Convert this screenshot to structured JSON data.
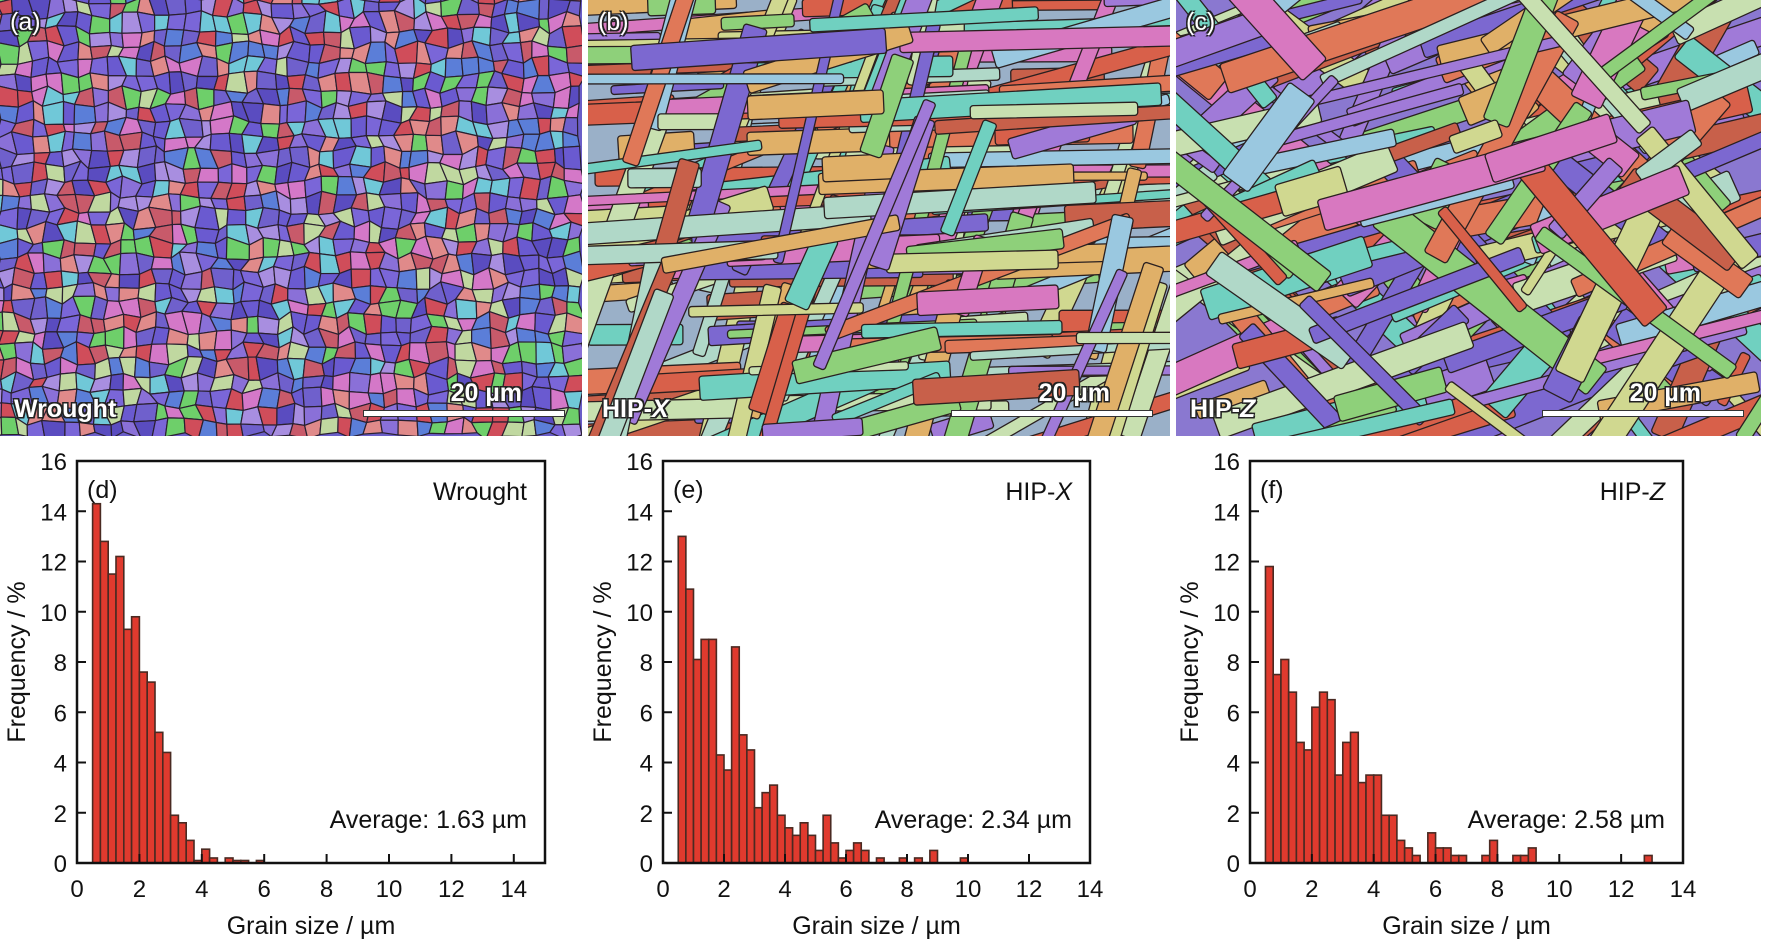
{
  "micrographs": [
    {
      "letter": "(a)",
      "name": "Wrought",
      "name_italic": "",
      "scale": "20 µm"
    },
    {
      "letter": "(b)",
      "name": "HIP-",
      "name_italic": "X",
      "scale": "20 µm"
    },
    {
      "letter": "(c)",
      "name": "HIP-",
      "name_italic": "Z",
      "scale": "20 µm"
    }
  ],
  "colors": {
    "bar": "#e03a2e",
    "bar_edge": "#4a2a22",
    "axis": "#111111"
  },
  "chart_data": [
    {
      "type": "bar",
      "panel_label": "(d)",
      "sample": "Wrought",
      "sample_italic": "",
      "annotation": "Average: 1.63 µm",
      "xlabel": "Grain size / µm",
      "ylabel": "Frequency / %",
      "xlim": [
        0,
        15
      ],
      "ylim": [
        0,
        16
      ],
      "xticks": [
        "0",
        "2",
        "4",
        "6",
        "8",
        "10",
        "12",
        "14"
      ],
      "yticks": [
        "0",
        "2",
        "4",
        "6",
        "8",
        "10",
        "12",
        "14",
        "16"
      ],
      "bin_start": 0.5,
      "bin_width": 0.25,
      "values": [
        14.3,
        12.8,
        11.5,
        12.2,
        9.3,
        9.8,
        7.6,
        7.2,
        5.2,
        4.4,
        1.9,
        1.6,
        0.9,
        0.1,
        0.55,
        0.2,
        0,
        0.2,
        0.1,
        0.1,
        0,
        0.1
      ]
    },
    {
      "type": "bar",
      "panel_label": "(e)",
      "sample": "HIP-",
      "sample_italic": "X",
      "annotation": "Average: 2.34 µm",
      "xlabel": "Grain size / µm",
      "ylabel": "Frequency / %",
      "xlim": [
        0,
        14
      ],
      "ylim": [
        0,
        16
      ],
      "xticks": [
        "0",
        "2",
        "4",
        "6",
        "8",
        "10",
        "12",
        "14"
      ],
      "yticks": [
        "0",
        "2",
        "4",
        "6",
        "8",
        "10",
        "12",
        "14",
        "16"
      ],
      "bin_start": 0.5,
      "bin_width": 0.25,
      "values": [
        13.0,
        10.9,
        8.1,
        8.9,
        8.9,
        4.3,
        3.7,
        8.6,
        5.1,
        4.5,
        2.2,
        2.8,
        3.1,
        1.9,
        1.4,
        1.1,
        1.6,
        1.1,
        0.5,
        1.9,
        0.8,
        0.2,
        0.5,
        0.8,
        0.5,
        0,
        0.2,
        0,
        0,
        0.2,
        0,
        0.2,
        0,
        0.5,
        0,
        0,
        0,
        0.2
      ]
    },
    {
      "type": "bar",
      "panel_label": "(f)",
      "sample": "HIP-",
      "sample_italic": "Z",
      "annotation": "Average: 2.58 µm",
      "xlabel": "Grain size / µm",
      "ylabel": "Frequency / %",
      "xlim": [
        0,
        14
      ],
      "ylim": [
        0,
        16
      ],
      "xticks": [
        "0",
        "2",
        "4",
        "6",
        "8",
        "10",
        "12",
        "14"
      ],
      "yticks": [
        "0",
        "2",
        "4",
        "6",
        "8",
        "10",
        "12",
        "14",
        "16"
      ],
      "bin_start": 0.5,
      "bin_width": 0.25,
      "values": [
        11.8,
        7.5,
        8.1,
        6.8,
        4.8,
        4.5,
        6.2,
        6.8,
        6.5,
        3.5,
        4.8,
        5.2,
        3.2,
        3.5,
        3.5,
        1.9,
        1.9,
        0.9,
        0.6,
        0.3,
        0,
        1.2,
        0.6,
        0.6,
        0.3,
        0.3,
        0,
        0,
        0.3,
        0.9,
        0,
        0,
        0.3,
        0.3,
        0.6,
        0,
        0,
        0,
        0,
        0,
        0,
        0,
        0,
        0,
        0,
        0,
        0,
        0,
        0,
        0.3
      ]
    }
  ]
}
